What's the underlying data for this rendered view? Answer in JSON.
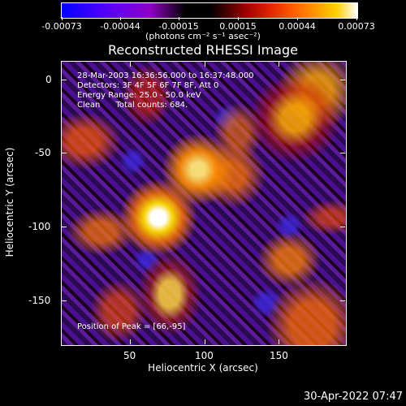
{
  "colorbar": {
    "labels": [
      "-0.00073",
      "-0.00044",
      "-0.00015",
      "0.00015",
      "0.00044",
      "0.00073"
    ],
    "units": "(photons cm⁻² s⁻¹ asec⁻²)"
  },
  "title": "Reconstructed RHESSI Image",
  "info": {
    "line1": "28-Mar-2003 16:36:56.000 to 16:37:48.000",
    "line2": "Detectors: 3F 4F 5F 6F 7F 8F, Att 0",
    "line3": "Energy Range: 25.0 - 50.0 keV",
    "line4": "Clean      Total counts: 684."
  },
  "peak": "Position of Peak = [66,-95]",
  "axes": {
    "xlabel": "Heliocentric X (arcsec)",
    "ylabel": "Heliocentric Y (arcsec)",
    "xticks": [
      "50",
      "100",
      "150"
    ],
    "yticks": [
      "0",
      "-50",
      "-100",
      "-150"
    ]
  },
  "date": "30-Apr-2022 07:47"
}
